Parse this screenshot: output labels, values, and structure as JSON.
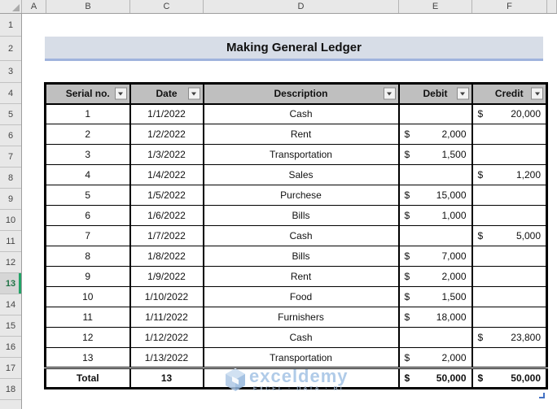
{
  "sheet": {
    "column_headers": [
      "A",
      "B",
      "C",
      "D",
      "E",
      "F"
    ],
    "row_headers": [
      "1",
      "2",
      "3",
      "4",
      "5",
      "6",
      "7",
      "8",
      "9",
      "10",
      "11",
      "12",
      "13",
      "14",
      "15",
      "16",
      "17",
      "18"
    ],
    "active_row": "13"
  },
  "title": {
    "text": "Making General Ledger"
  },
  "table": {
    "currency_symbol": "$",
    "headers": [
      {
        "label": "Serial no."
      },
      {
        "label": "Date"
      },
      {
        "label": "Description"
      },
      {
        "label": "Debit"
      },
      {
        "label": "Credit"
      }
    ],
    "rows": [
      {
        "serial": "1",
        "date": "1/1/2022",
        "description": "Cash",
        "debit": "",
        "credit": "20,000"
      },
      {
        "serial": "2",
        "date": "1/2/2022",
        "description": "Rent",
        "debit": "2,000",
        "credit": ""
      },
      {
        "serial": "3",
        "date": "1/3/2022",
        "description": "Transportation",
        "debit": "1,500",
        "credit": ""
      },
      {
        "serial": "4",
        "date": "1/4/2022",
        "description": "Sales",
        "debit": "",
        "credit": "1,200"
      },
      {
        "serial": "5",
        "date": "1/5/2022",
        "description": "Purchese",
        "debit": "15,000",
        "credit": ""
      },
      {
        "serial": "6",
        "date": "1/6/2022",
        "description": "Bills",
        "debit": "1,000",
        "credit": ""
      },
      {
        "serial": "7",
        "date": "1/7/2022",
        "description": "Cash",
        "debit": "",
        "credit": "5,000"
      },
      {
        "serial": "8",
        "date": "1/8/2022",
        "description": "Bills",
        "debit": "7,000",
        "credit": ""
      },
      {
        "serial": "9",
        "date": "1/9/2022",
        "description": "Rent",
        "debit": "2,000",
        "credit": ""
      },
      {
        "serial": "10",
        "date": "1/10/2022",
        "description": "Food",
        "debit": "1,500",
        "credit": ""
      },
      {
        "serial": "11",
        "date": "1/11/2022",
        "description": "Furnishers",
        "debit": "18,000",
        "credit": ""
      },
      {
        "serial": "12",
        "date": "1/12/2022",
        "description": "Cash",
        "debit": "",
        "credit": "23,800"
      },
      {
        "serial": "13",
        "date": "1/13/2022",
        "description": "Transportation",
        "debit": "2,000",
        "credit": ""
      }
    ],
    "total_row": {
      "label": "Total",
      "date_count": "13",
      "debit": "50,000",
      "credit": "50,000"
    }
  },
  "watermark": {
    "brand": "exceldemy",
    "tagline": "EXCEL · DATA · BI"
  },
  "colors": {
    "title_fill": "#d7dde7",
    "title_border": "#9fb3dd",
    "header_fill": "#bfbfbf",
    "active_row_green": "#21a366",
    "watermark_blue": "#a3c2e4"
  }
}
